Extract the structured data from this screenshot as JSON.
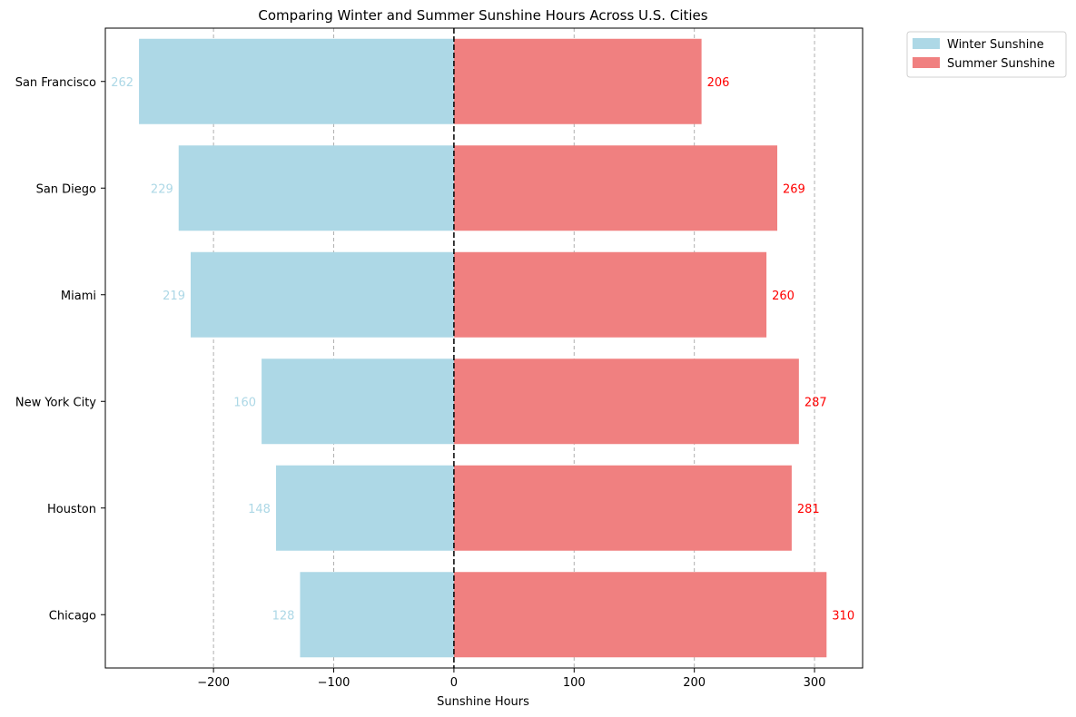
{
  "chart_data": {
    "type": "bar",
    "orientation": "horizontal",
    "title": "Comparing Winter and Summer Sunshine Hours Across U.S. Cities",
    "xlabel": "Sunshine Hours",
    "ylabel": "",
    "categories": [
      "San Francisco",
      "San Diego",
      "Miami",
      "New York City",
      "Houston",
      "Chicago"
    ],
    "series": [
      {
        "name": "Winter Sunshine",
        "values": [
          -262,
          -229,
          -219,
          -160,
          -148,
          -128
        ],
        "labels": [
          "262",
          "229",
          "219",
          "160",
          "148",
          "128"
        ],
        "color": "#add8e6",
        "label_color": "#add8e6"
      },
      {
        "name": "Summer Sunshine",
        "values": [
          206,
          269,
          260,
          287,
          281,
          310
        ],
        "labels": [
          "206",
          "269",
          "260",
          "287",
          "281",
          "310"
        ],
        "color": "#f08080",
        "label_color": "#ff0000"
      }
    ],
    "xlim": [
      -290,
      340
    ],
    "xticks": [
      -200,
      -100,
      0,
      100,
      200,
      300
    ],
    "xtick_labels": [
      "−200",
      "−100",
      "0",
      "100",
      "200",
      "300"
    ],
    "grid": "x dashed",
    "zero_line": "dashed black",
    "legend_position": "outside top-right"
  }
}
